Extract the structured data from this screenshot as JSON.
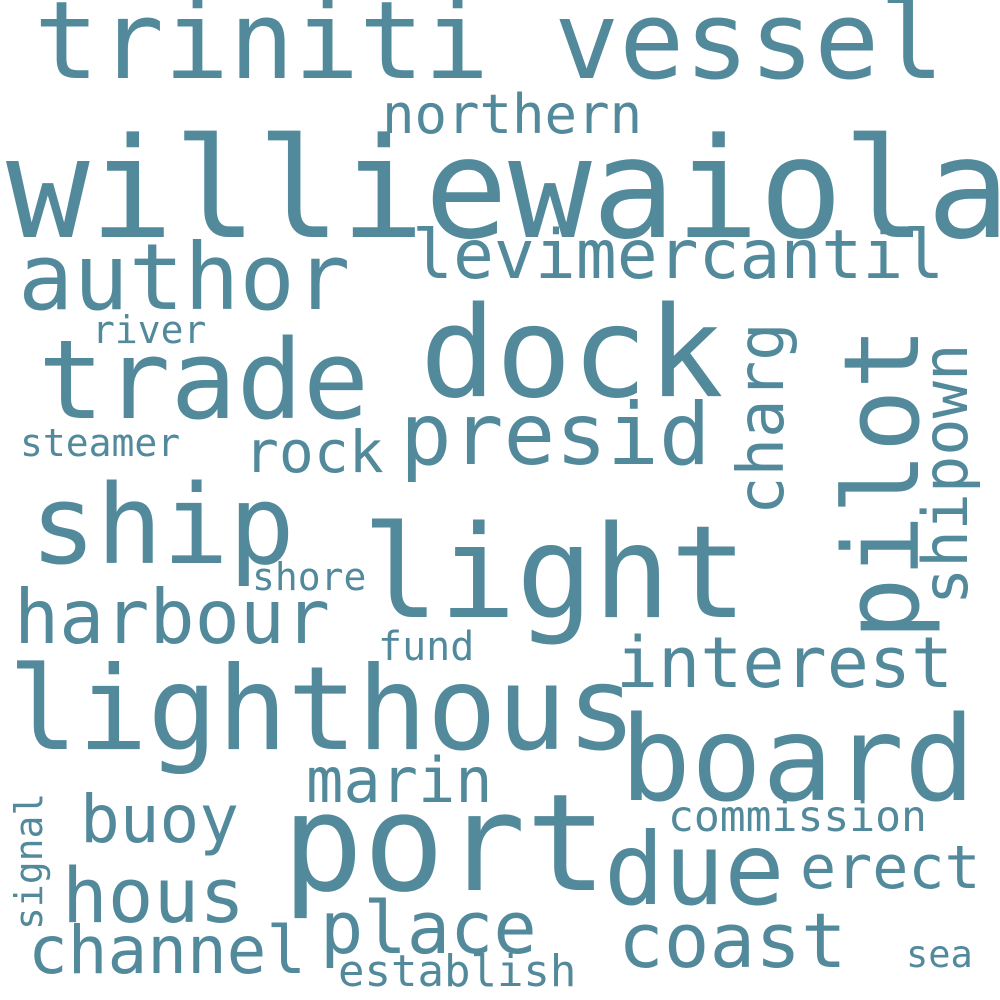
{
  "word_color": "#528A9C",
  "background_color": "#FFFFFF",
  "words": [
    "williewaiola",
    "triniti vessel",
    "dock",
    "light",
    "lighthous",
    "port",
    "board",
    "trade",
    "ship",
    "pilot",
    "author",
    "presid",
    "due",
    "coast",
    "levimercantil",
    "harbour",
    "interest",
    "place",
    "hous",
    "channel",
    "marin",
    "buoy",
    "erect",
    "shipown",
    "charg",
    "northern",
    "rock",
    "commission",
    "establish",
    "fund",
    "shore",
    "steamer",
    "river",
    "signal",
    "sea"
  ]
}
